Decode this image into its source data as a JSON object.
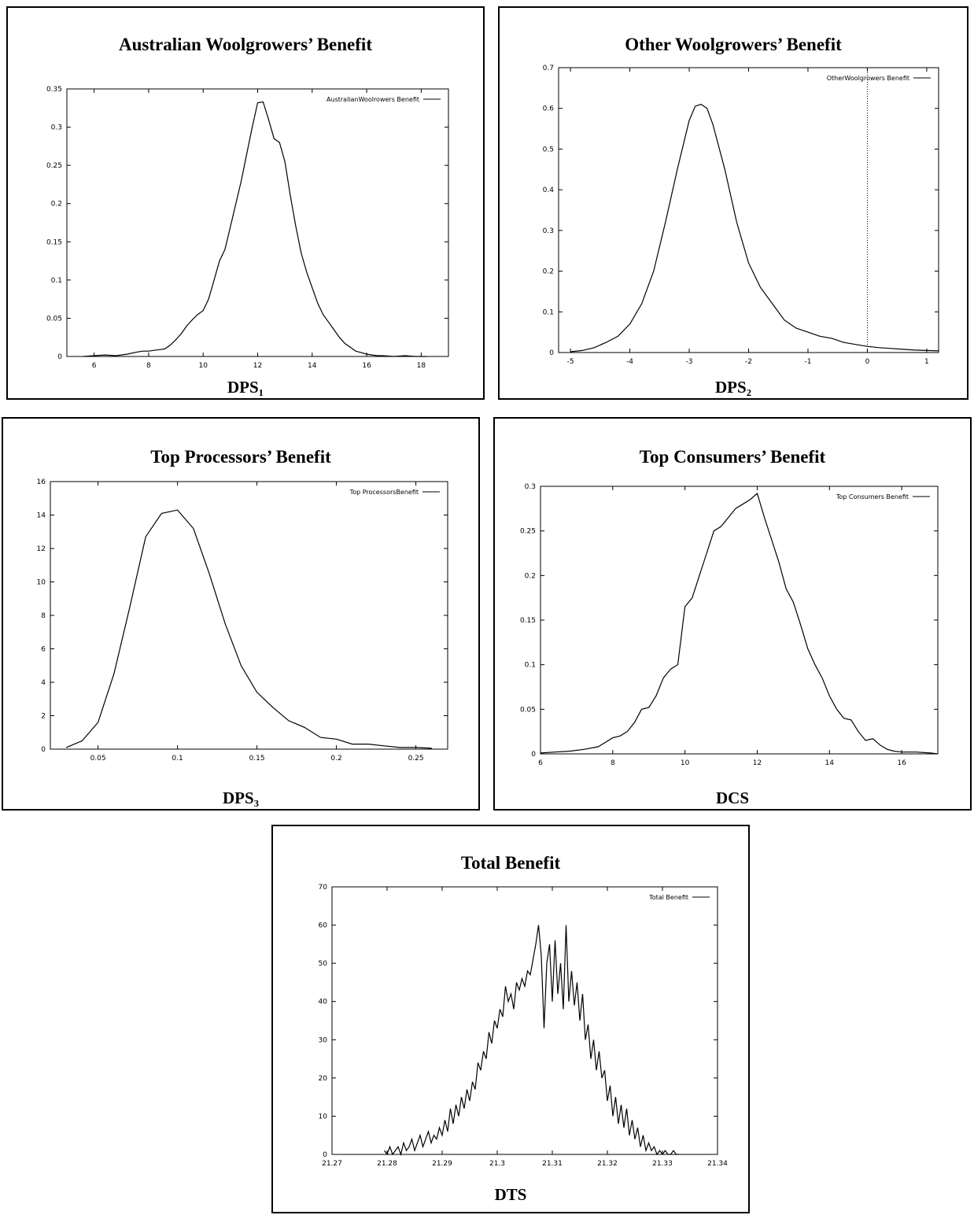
{
  "chart_data": [
    {
      "type": "line",
      "title": "Australian Woolgrowers’ Benefit",
      "xlabel": "DPS₁",
      "xlim": [
        5,
        19
      ],
      "ylim": [
        0,
        0.35
      ],
      "xticks": [
        6,
        8,
        10,
        12,
        14,
        16,
        18
      ],
      "yticks": [
        0,
        0.05,
        0.1,
        0.15,
        0.2,
        0.25,
        0.3,
        0.35
      ],
      "xtick_labels": [
        "6",
        "8",
        "10",
        "12",
        "14",
        "16",
        "18"
      ],
      "ytick_labels": [
        "0",
        "0.05",
        "0.1",
        "0.15",
        "0.2",
        "0.25",
        "0.3",
        "0.35"
      ],
      "series": [
        {
          "name": "AustralianWoolrowers Benefit",
          "x": [
            5.6,
            6.0,
            6.4,
            6.8,
            7.2,
            7.6,
            7.8,
            8.0,
            8.2,
            8.4,
            8.6,
            8.8,
            9.0,
            9.2,
            9.4,
            9.6,
            9.8,
            10.0,
            10.2,
            10.4,
            10.6,
            10.8,
            11.0,
            11.2,
            11.4,
            11.6,
            11.8,
            12.0,
            12.2,
            12.4,
            12.6,
            12.8,
            13.0,
            13.2,
            13.4,
            13.6,
            13.8,
            14.0,
            14.2,
            14.4,
            14.6,
            14.8,
            15.0,
            15.2,
            15.4,
            15.6,
            15.8,
            16.0,
            16.2,
            16.4,
            16.6,
            17.0,
            17.4,
            17.8,
            18.2
          ],
          "values": [
            0,
            0.001,
            0.002,
            0.001,
            0.003,
            0.006,
            0.007,
            0.007,
            0.008,
            0.009,
            0.01,
            0.015,
            0.022,
            0.03,
            0.04,
            0.048,
            0.055,
            0.06,
            0.075,
            0.1,
            0.125,
            0.14,
            0.17,
            0.2,
            0.23,
            0.265,
            0.3,
            0.332,
            0.333,
            0.31,
            0.285,
            0.28,
            0.255,
            0.21,
            0.17,
            0.135,
            0.11,
            0.09,
            0.07,
            0.055,
            0.045,
            0.035,
            0.025,
            0.017,
            0.012,
            0.007,
            0.005,
            0.003,
            0.002,
            0.001,
            0.001,
            0,
            0.001,
            0,
            0
          ]
        }
      ]
    },
    {
      "type": "line",
      "title": "Other Woolgrowers’ Benefit",
      "xlabel": "DPS₂",
      "xlim": [
        -5.2,
        1.2
      ],
      "ylim": [
        0,
        0.7
      ],
      "xticks": [
        -5,
        -4,
        -3,
        -2,
        -1,
        0,
        1
      ],
      "yticks": [
        0,
        0.1,
        0.2,
        0.3,
        0.4,
        0.5,
        0.6,
        0.7
      ],
      "xtick_labels": [
        "-5",
        "-4",
        "-3",
        "-2",
        "-1",
        "0",
        "1"
      ],
      "ytick_labels": [
        "0",
        "0.1",
        "0.2",
        "0.3",
        "0.4",
        "0.5",
        "0.6",
        "0.7"
      ],
      "vline_x": 0,
      "series": [
        {
          "name": "OtherWoolgrowers Benefit",
          "x": [
            -5.0,
            -4.8,
            -4.6,
            -4.4,
            -4.2,
            -4.0,
            -3.8,
            -3.6,
            -3.4,
            -3.2,
            -3.0,
            -2.9,
            -2.8,
            -2.7,
            -2.6,
            -2.4,
            -2.2,
            -2.0,
            -1.8,
            -1.6,
            -1.4,
            -1.2,
            -1.0,
            -0.8,
            -0.6,
            -0.4,
            -0.2,
            0.0,
            0.2,
            0.4,
            0.6,
            0.8,
            1.0,
            1.2
          ],
          "values": [
            0.002,
            0.005,
            0.012,
            0.025,
            0.04,
            0.07,
            0.12,
            0.2,
            0.32,
            0.45,
            0.57,
            0.605,
            0.61,
            0.6,
            0.56,
            0.45,
            0.32,
            0.22,
            0.16,
            0.12,
            0.08,
            0.06,
            0.05,
            0.04,
            0.035,
            0.025,
            0.02,
            0.015,
            0.012,
            0.01,
            0.008,
            0.006,
            0.005,
            0.004
          ]
        }
      ]
    },
    {
      "type": "line",
      "title": "Top Processors’ Benefit",
      "xlabel": "DPS₃",
      "xlim": [
        0.02,
        0.27
      ],
      "ylim": [
        0,
        16
      ],
      "xticks": [
        0.05,
        0.1,
        0.15,
        0.2,
        0.25
      ],
      "yticks": [
        0,
        2,
        4,
        6,
        8,
        10,
        12,
        14,
        16
      ],
      "xtick_labels": [
        "0.05",
        "0.1",
        "0.15",
        "0.2",
        "0.25"
      ],
      "ytick_labels": [
        "0",
        "2",
        "4",
        "6",
        "8",
        "10",
        "12",
        "14",
        "16"
      ],
      "series": [
        {
          "name": "Top ProcessorsBenefit",
          "x": [
            0.03,
            0.04,
            0.05,
            0.06,
            0.07,
            0.08,
            0.09,
            0.1,
            0.11,
            0.12,
            0.13,
            0.14,
            0.15,
            0.16,
            0.17,
            0.18,
            0.19,
            0.2,
            0.21,
            0.22,
            0.23,
            0.24,
            0.25,
            0.26
          ],
          "values": [
            0.1,
            0.5,
            1.6,
            4.5,
            8.5,
            12.7,
            14.1,
            14.3,
            13.2,
            10.5,
            7.5,
            5.0,
            3.4,
            2.5,
            1.7,
            1.3,
            0.7,
            0.6,
            0.3,
            0.3,
            0.2,
            0.1,
            0.1,
            0.05
          ]
        }
      ]
    },
    {
      "type": "line",
      "title": "Top Consumers’ Benefit",
      "xlabel": "DCS",
      "xlim": [
        6,
        17
      ],
      "ylim": [
        0,
        0.3
      ],
      "xticks": [
        6,
        8,
        10,
        12,
        14,
        16
      ],
      "yticks": [
        0,
        0.05,
        0.1,
        0.15,
        0.2,
        0.25,
        0.3
      ],
      "xtick_labels": [
        "6",
        "8",
        "10",
        "12",
        "14",
        "16"
      ],
      "ytick_labels": [
        "0",
        "0.05",
        "0.1",
        "0.15",
        "0.2",
        "0.25",
        "0.3"
      ],
      "series": [
        {
          "name": "Top Consumers Benefit",
          "x": [
            6.0,
            6.4,
            6.8,
            7.2,
            7.6,
            8.0,
            8.2,
            8.4,
            8.6,
            8.8,
            9.0,
            9.2,
            9.4,
            9.6,
            9.8,
            10.0,
            10.2,
            10.4,
            10.6,
            10.8,
            11.0,
            11.2,
            11.4,
            11.6,
            11.8,
            12.0,
            12.2,
            12.4,
            12.6,
            12.8,
            13.0,
            13.2,
            13.4,
            13.6,
            13.8,
            14.0,
            14.2,
            14.4,
            14.6,
            14.8,
            15.0,
            15.2,
            15.4,
            15.6,
            15.8,
            16.0,
            16.4,
            16.8,
            17.0
          ],
          "values": [
            0.001,
            0.002,
            0.003,
            0.005,
            0.008,
            0.018,
            0.02,
            0.025,
            0.035,
            0.05,
            0.052,
            0.065,
            0.085,
            0.095,
            0.1,
            0.165,
            0.175,
            0.2,
            0.225,
            0.25,
            0.255,
            0.265,
            0.275,
            0.28,
            0.285,
            0.292,
            0.265,
            0.24,
            0.215,
            0.185,
            0.17,
            0.145,
            0.118,
            0.1,
            0.085,
            0.065,
            0.05,
            0.04,
            0.038,
            0.025,
            0.015,
            0.017,
            0.01,
            0.005,
            0.003,
            0.002,
            0.002,
            0.001,
            0
          ]
        }
      ]
    },
    {
      "type": "line",
      "title": "Total Benefit",
      "xlabel": "DTS",
      "xlim": [
        21.27,
        21.34
      ],
      "ylim": [
        0,
        70
      ],
      "xticks": [
        21.27,
        21.28,
        21.29,
        21.3,
        21.31,
        21.32,
        21.33,
        21.34
      ],
      "yticks": [
        0,
        10,
        20,
        30,
        40,
        50,
        60,
        70
      ],
      "xtick_labels": [
        "21.27",
        "21.28",
        "21.29",
        "21.3",
        "21.31",
        "21.32",
        "21.33",
        "21.34"
      ],
      "ytick_labels": [
        "0",
        "10",
        "20",
        "30",
        "40",
        "50",
        "60",
        "70"
      ],
      "series": [
        {
          "name": "Total Benefit",
          "x": [
            21.2795,
            21.28,
            21.2805,
            21.281,
            21.2815,
            21.282,
            21.2825,
            21.283,
            21.2835,
            21.284,
            21.2845,
            21.285,
            21.2855,
            21.286,
            21.2865,
            21.287,
            21.2875,
            21.288,
            21.2885,
            21.289,
            21.2895,
            21.29,
            21.2905,
            21.291,
            21.2915,
            21.292,
            21.2925,
            21.293,
            21.2935,
            21.294,
            21.2945,
            21.295,
            21.2955,
            21.296,
            21.2965,
            21.297,
            21.2975,
            21.298,
            21.2985,
            21.299,
            21.2995,
            21.3,
            21.3005,
            21.301,
            21.3015,
            21.302,
            21.3025,
            21.303,
            21.3035,
            21.304,
            21.3045,
            21.305,
            21.3055,
            21.306,
            21.3065,
            21.307,
            21.3075,
            21.308,
            21.3085,
            21.309,
            21.3095,
            21.31,
            21.3105,
            21.311,
            21.3115,
            21.312,
            21.3125,
            21.313,
            21.3135,
            21.314,
            21.3145,
            21.315,
            21.3155,
            21.316,
            21.3165,
            21.317,
            21.3175,
            21.318,
            21.3185,
            21.319,
            21.3195,
            21.32,
            21.3205,
            21.321,
            21.3215,
            21.322,
            21.3225,
            21.323,
            21.3235,
            21.324,
            21.3245,
            21.325,
            21.3255,
            21.326,
            21.3265,
            21.327,
            21.3275,
            21.328,
            21.3285,
            21.329,
            21.3295,
            21.33,
            21.3305,
            21.331,
            21.3315,
            21.332,
            21.3325,
            21.333
          ],
          "values": [
            1,
            0,
            2,
            0,
            1,
            2,
            0,
            3,
            1,
            2,
            4,
            1,
            3,
            5,
            2,
            4,
            6,
            3,
            5,
            4,
            7,
            5,
            9,
            6,
            12,
            8,
            13,
            10,
            15,
            12,
            17,
            14,
            19,
            17,
            24,
            22,
            27,
            25,
            32,
            29,
            35,
            33,
            38,
            36,
            44,
            40,
            42,
            38,
            45,
            43,
            46,
            44,
            48,
            47,
            51,
            55,
            60,
            52,
            33,
            50,
            55,
            40,
            56,
            42,
            50,
            38,
            60,
            40,
            48,
            39,
            45,
            35,
            42,
            30,
            34,
            25,
            30,
            22,
            27,
            20,
            22,
            14,
            18,
            10,
            15,
            8,
            13,
            7,
            12,
            5,
            9,
            4,
            7,
            2,
            5,
            1,
            3,
            1,
            2,
            0,
            1,
            0,
            1,
            0,
            0,
            1,
            0,
            0
          ]
        }
      ]
    }
  ]
}
